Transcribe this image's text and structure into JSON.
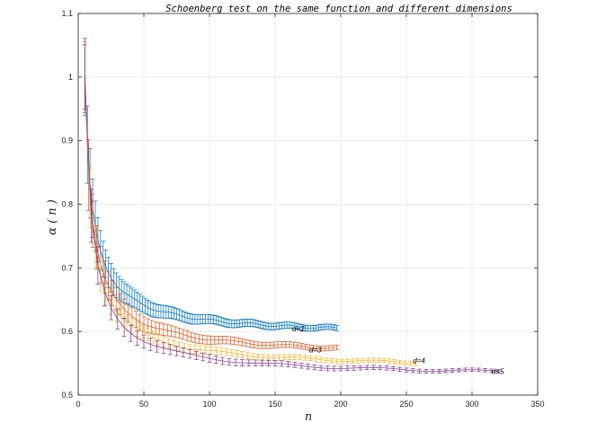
{
  "chart_data": {
    "type": "line",
    "title": "Schoenberg test on the same function and different dimensions",
    "xlabel": "n",
    "ylabel": "α ( n )",
    "xlim": [
      0,
      350
    ],
    "ylim": [
      0.5,
      1.1
    ],
    "xticks": [
      "0",
      "50",
      "100",
      "150",
      "200",
      "250",
      "300",
      "350"
    ],
    "yticks": [
      "0.5",
      "0.6",
      "0.7",
      "0.8",
      "0.9",
      "1",
      "1.1"
    ],
    "grid": true,
    "error_bars": true,
    "series": [
      {
        "name": "d=2",
        "color": "#0072BD",
        "d": 2,
        "n_max": 198,
        "limit": 0.59,
        "offset": 0.41,
        "start": 0.95,
        "sigma0": 0.06
      },
      {
        "name": "d=3",
        "color": "#D95319",
        "d": 3,
        "n_max": 198,
        "limit": 0.558,
        "offset": 0.442,
        "start": 0.96,
        "sigma0": 0.055
      },
      {
        "name": "d=4",
        "color": "#EDB120",
        "d": 4,
        "n_max": 258,
        "limit": 0.538,
        "offset": 0.462,
        "start": 0.97,
        "sigma0": 0.05
      },
      {
        "name": "d=5",
        "color": "#7E2F8E",
        "d": 5,
        "n_max": 320,
        "limit": 0.526,
        "offset": 0.474,
        "start": 0.98,
        "sigma0": 0.05
      }
    ],
    "annotations": [
      {
        "text": "d=2",
        "x": 163,
        "y": 0.6
      },
      {
        "text": "d=3",
        "x": 176,
        "y": 0.567
      },
      {
        "text": "d=4",
        "x": 255,
        "y": 0.55
      },
      {
        "text": "d=5",
        "x": 315,
        "y": 0.533
      }
    ]
  }
}
